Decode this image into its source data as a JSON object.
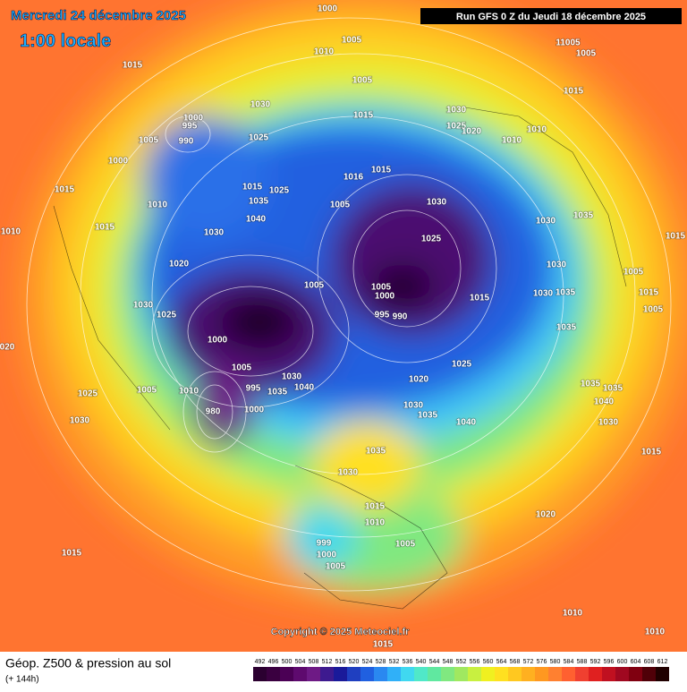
{
  "header": {
    "date": "Mercredi 24 décembre 2025",
    "time": "1:00 locale",
    "run": "Run GFS 0 Z du Jeudi 18 décembre 2025"
  },
  "copyright": "Copyright © 2025 Meteociel.fr",
  "footer": {
    "title": "Géop. Z500 & pression au sol",
    "subtitle": "(+ 144h)"
  },
  "isobar_labels": [
    "1000",
    "1005",
    "1010",
    "11005",
    "1005",
    "1015",
    "1005",
    "1015",
    "1030",
    "1015",
    "1030",
    "1000",
    "995",
    "1025",
    "1020",
    "1010",
    "1010",
    "1005",
    "990",
    "1025",
    "1000",
    "1015",
    "1015",
    "1010",
    "1015",
    "1035",
    "1025",
    "1040",
    "1030",
    "1005",
    "1016",
    "1030",
    "1015",
    "1010",
    "1030",
    "1025",
    "1035",
    "1015",
    "1020",
    "1030",
    "1005",
    "1005",
    "1005",
    "1000",
    "1015",
    "1030",
    "1035",
    "1015",
    "1030",
    "1025",
    "995",
    "990",
    "1005",
    "1035",
    "1000",
    "020",
    "1025",
    "1005",
    "1020",
    "1010",
    "995",
    "1005",
    "1025",
    "1035",
    "1030",
    "1040",
    "1035",
    "1035",
    "1040",
    "980",
    "1030",
    "1000",
    "1035",
    "1040",
    "1030",
    "1030",
    "1035",
    "1015",
    "1030",
    "1015",
    "1020",
    "1010",
    "999",
    "1005",
    "1000",
    "1005",
    "1015",
    "1010",
    "1010",
    "1015"
  ],
  "scale": {
    "values": [
      492,
      496,
      500,
      504,
      508,
      512,
      516,
      520,
      524,
      528,
      532,
      536,
      540,
      544,
      548,
      552,
      556,
      560,
      564,
      568,
      572,
      576,
      580,
      584,
      588,
      592,
      596,
      600,
      604,
      608,
      612
    ],
    "colors": [
      "#2b0030",
      "#3a0040",
      "#4b0055",
      "#5e0a6e",
      "#6e1a85",
      "#3d1a8f",
      "#1a1a9a",
      "#1f3fc0",
      "#2060e0",
      "#2a88f0",
      "#30b0f8",
      "#40d8f0",
      "#50e8c8",
      "#60e8a0",
      "#80e880",
      "#a0e860",
      "#c8f040",
      "#f0f020",
      "#ffe020",
      "#ffc820",
      "#ffb020",
      "#ff9820",
      "#ff8030",
      "#ff6030",
      "#f04030",
      "#e02020",
      "#c01020",
      "#a00820",
      "#800010",
      "#500008",
      "#200000"
    ]
  }
}
